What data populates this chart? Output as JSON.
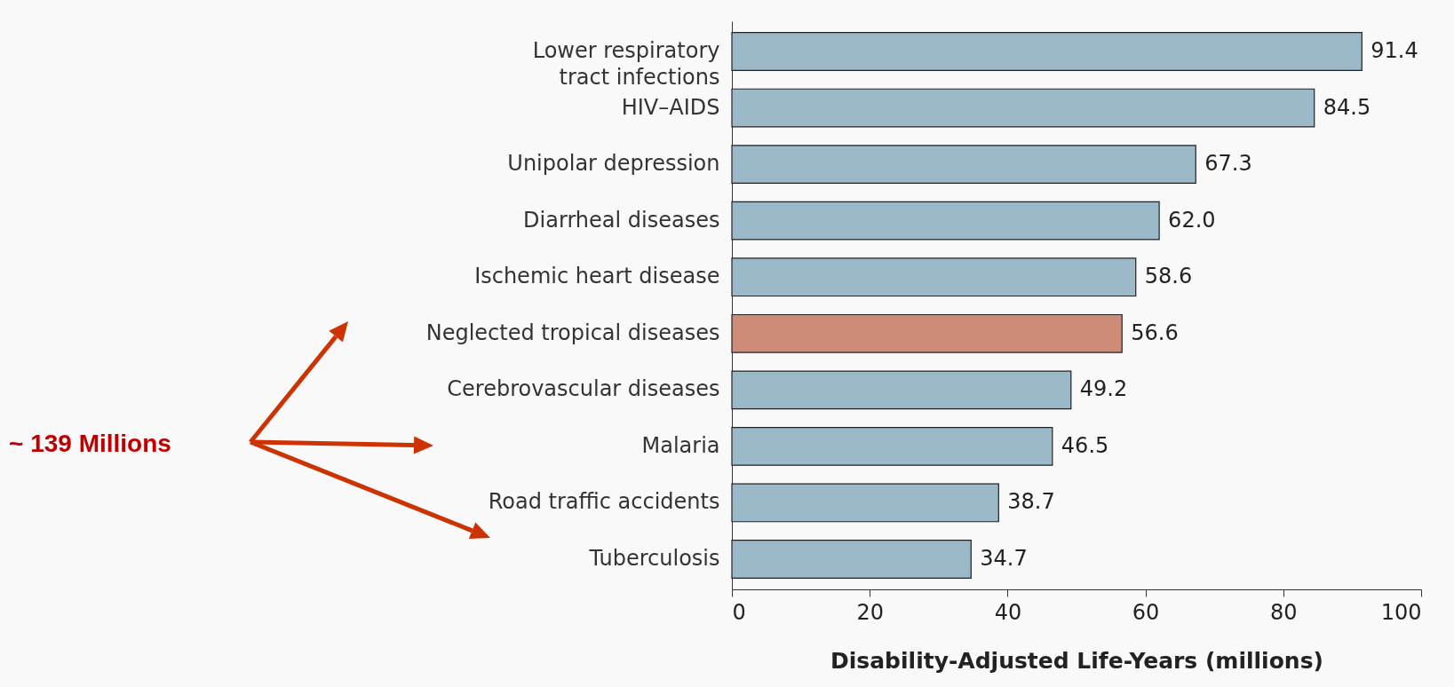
{
  "chart_data": {
    "type": "bar",
    "orientation": "horizontal",
    "categories": [
      "Lower respiratory tract infections",
      "HIV–AIDS",
      "Unipolar depression",
      "Diarrheal diseases",
      "Ischemic heart disease",
      "Neglected tropical diseases",
      "Cerebrovascular diseases",
      "Malaria",
      "Road traffic accidents",
      "Tuberculosis"
    ],
    "values": [
      91.4,
      84.5,
      67.3,
      62.0,
      58.6,
      56.6,
      49.2,
      46.5,
      38.7,
      34.7
    ],
    "colors": [
      "#9cb9ca",
      "#9cb9ca",
      "#9cb9ca",
      "#9cb9ca",
      "#9cb9ca",
      "#ce8b77",
      "#9cb9ca",
      "#9cb9ca",
      "#9cb9ca",
      "#9cb9ca"
    ],
    "xlim": [
      0,
      100
    ],
    "xticks": [
      0,
      20,
      40,
      60,
      80,
      100
    ],
    "xlabel": "Disability-Adjusted Life-Years (millions)",
    "value_labels": [
      "91.4",
      "84.5",
      "67.3",
      "62.0",
      "58.6",
      "56.6",
      "49.2",
      "46.5",
      "38.7",
      "34.7"
    ],
    "grid": false,
    "annotations": [
      "~ 139 Millions"
    ]
  }
}
